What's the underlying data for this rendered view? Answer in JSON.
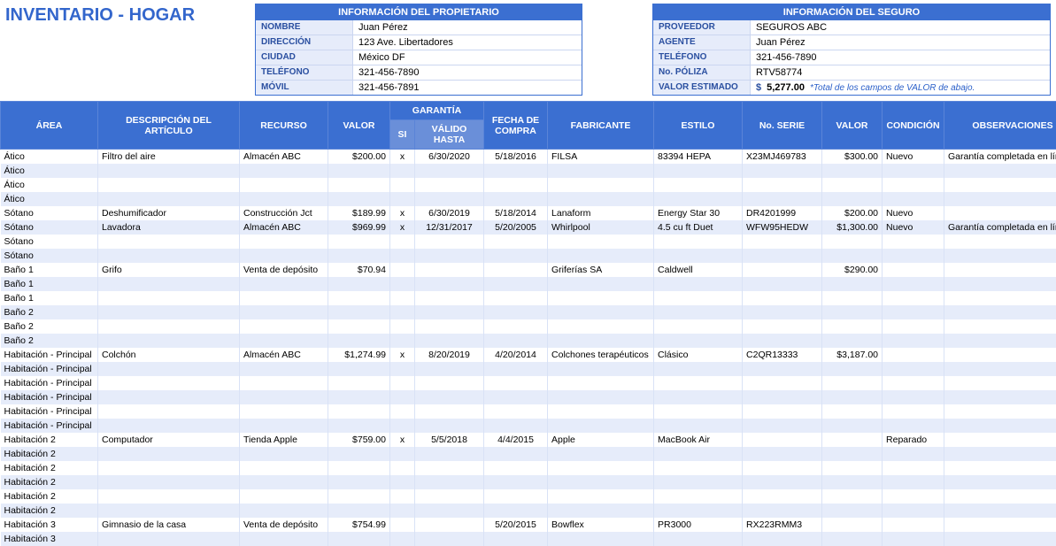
{
  "title": "INVENTARIO - HOGAR",
  "owner": {
    "header": "INFORMACIÓN DEL PROPIETARIO",
    "rows": [
      {
        "label": "NOMBRE",
        "value": "Juan Pérez"
      },
      {
        "label": "DIRECCIÓN",
        "value": "123 Ave. Libertadores"
      },
      {
        "label": "CIUDAD",
        "value": "México DF"
      },
      {
        "label": "TELÉFONO",
        "value": "321-456-7890"
      },
      {
        "label": "MÓVIL",
        "value": "321-456-7891"
      }
    ]
  },
  "insurance": {
    "header": "INFORMACIÓN DEL SEGURO",
    "rows": [
      {
        "label": "PROVEEDOR",
        "value": "SEGUROS ABC"
      },
      {
        "label": "AGENTE",
        "value": "Juan Pérez"
      },
      {
        "label": "TELÉFONO",
        "value": "321-456-7890"
      },
      {
        "label": "No. PÓLIZA",
        "value": "RTV58774"
      }
    ],
    "estimate_label": "VALOR ESTIMADO",
    "estimate_currency": "$",
    "estimate_amount": "5,277.00",
    "estimate_note": "*Total de los campos de VALOR de abajo."
  },
  "table": {
    "headers": {
      "area": "ÁREA",
      "desc": "DESCRIPCIÓN DEL ARTÍCULO",
      "recurso": "RECURSO",
      "valor1": "VALOR",
      "garantia": "GARANTÍA",
      "si": "SI",
      "valido": "VÁLIDO HASTA",
      "fecha": "FECHA DE COMPRA",
      "fabricante": "FABRICANTE",
      "estilo": "ESTILO",
      "serie": "No. SERIE",
      "valor2": "VALOR",
      "condicion": "CONDICIÓN",
      "obs": "OBSERVACIONES"
    },
    "rows": [
      {
        "area": "Ático",
        "desc": "Filtro del aire",
        "recurso": "Almacén ABC",
        "valor1": "$200.00",
        "si": "x",
        "valido": "6/30/2020",
        "fecha": "5/18/2016",
        "fabricante": "FILSA",
        "estilo": "83394 HEPA",
        "serie": "X23MJ469783",
        "valor2": "$300.00",
        "condicion": "Nuevo",
        "obs": "Garantía completada en línea"
      },
      {
        "area": "Ático"
      },
      {
        "area": "Ático"
      },
      {
        "area": "Ático"
      },
      {
        "area": "Sótano",
        "desc": "Deshumificador",
        "recurso": "Construcción Jct",
        "valor1": "$189.99",
        "si": "x",
        "valido": "6/30/2019",
        "fecha": "5/18/2014",
        "fabricante": "Lanaform",
        "estilo": "Energy Star 30",
        "serie": "DR4201999",
        "valor2": "$200.00",
        "condicion": "Nuevo"
      },
      {
        "area": "Sótano",
        "desc": "Lavadora",
        "recurso": "Almacén ABC",
        "valor1": "$969.99",
        "si": "x",
        "valido": "12/31/2017",
        "fecha": "5/20/2005",
        "fabricante": "Whirlpool",
        "estilo": "4.5 cu ft Duet",
        "serie": "WFW95HEDW",
        "valor2": "$1,300.00",
        "condicion": "Nuevo",
        "obs": "Garantía completada en línea"
      },
      {
        "area": "Sótano"
      },
      {
        "area": "Sótano"
      },
      {
        "area": "Baño 1",
        "desc": "Grifo",
        "recurso": "Venta de depósito",
        "valor1": "$70.94",
        "fabricante": "Griferías SA",
        "estilo": "Caldwell",
        "valor2": "$290.00"
      },
      {
        "area": "Baño 1"
      },
      {
        "area": "Baño 1"
      },
      {
        "area": "Baño 2"
      },
      {
        "area": "Baño 2"
      },
      {
        "area": "Baño 2"
      },
      {
        "area": "Habitación - Principal",
        "desc": "Colchón",
        "recurso": "Almacén ABC",
        "valor1": "$1,274.99",
        "si": "x",
        "valido": "8/20/2019",
        "fecha": "4/20/2014",
        "fabricante": "Colchones terapéuticos",
        "estilo": "Clásico",
        "serie": "C2QR13333",
        "valor2": "$3,187.00"
      },
      {
        "area": "Habitación - Principal"
      },
      {
        "area": "Habitación - Principal"
      },
      {
        "area": "Habitación - Principal"
      },
      {
        "area": "Habitación - Principal"
      },
      {
        "area": "Habitación - Principal"
      },
      {
        "area": "Habitación 2",
        "desc": "Computador",
        "recurso": "Tienda Apple",
        "valor1": "$759.00",
        "si": "x",
        "valido": "5/5/2018",
        "fecha": "4/4/2015",
        "fabricante": "Apple",
        "estilo": "MacBook Air",
        "condicion": "Reparado"
      },
      {
        "area": "Habitación 2"
      },
      {
        "area": "Habitación 2"
      },
      {
        "area": "Habitación 2"
      },
      {
        "area": "Habitación 2"
      },
      {
        "area": "Habitación 2"
      },
      {
        "area": "Habitación 3",
        "desc": "Gimnasio de la casa",
        "recurso": "Venta de depósito",
        "valor1": "$754.99",
        "fecha": "5/20/2015",
        "fabricante": "Bowflex",
        "estilo": "PR3000",
        "serie": "RX223RMM3"
      },
      {
        "area": "Habitación 3"
      }
    ]
  },
  "colors": {
    "header_bg": "#3b6fd1",
    "subheader_bg": "#6a8fd9",
    "row_even_bg": "#e6ecfa",
    "row_odd_bg": "#ffffff",
    "label_bg": "#e6ecfa",
    "title_color": "#3366cc"
  }
}
